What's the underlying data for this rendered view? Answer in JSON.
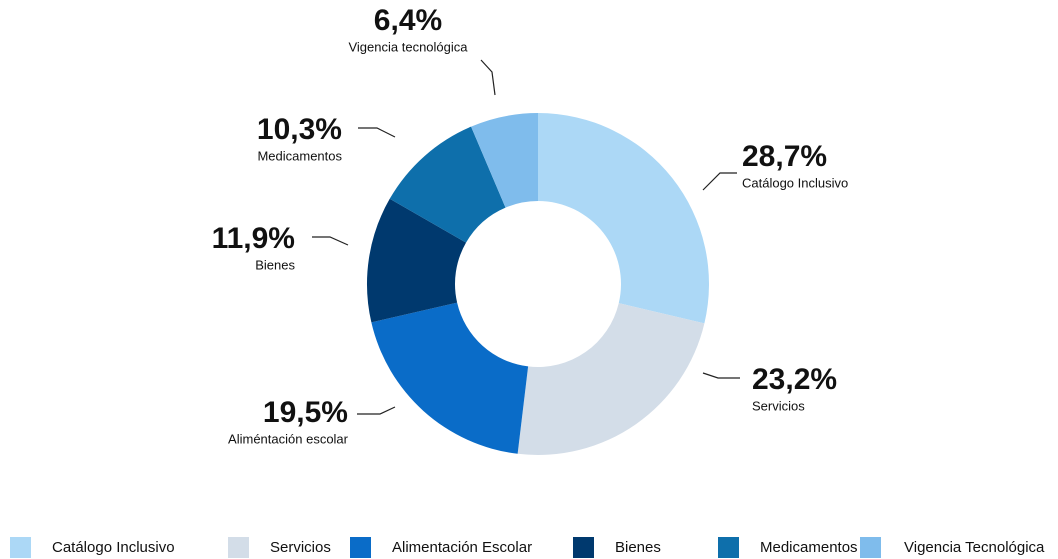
{
  "chart_data": {
    "type": "pie",
    "categories": [
      "Catálogo Inclusivo",
      "Servicios",
      "Alimentación Escolar",
      "Bienes",
      "Medicamentos",
      "Vigencia Tecnológica"
    ],
    "labels": [
      "Catálogo Inclusivo",
      "Servicios",
      "Aliméntación escolar",
      "Bienes",
      "Medicamentos",
      "Vigencia tecnológica"
    ],
    "values": [
      28.7,
      23.2,
      19.5,
      11.9,
      10.3,
      6.4
    ],
    "value_labels": [
      "28,7%",
      "23,2%",
      "19,5%",
      "11,9%",
      "10,3%",
      "6,4%"
    ],
    "colors": [
      "#acd8f6",
      "#d3dde8",
      "#0a6cc8",
      "#00396e",
      "#0e6fab",
      "#7fbcec"
    ],
    "donut": true,
    "legend": "bottom"
  }
}
